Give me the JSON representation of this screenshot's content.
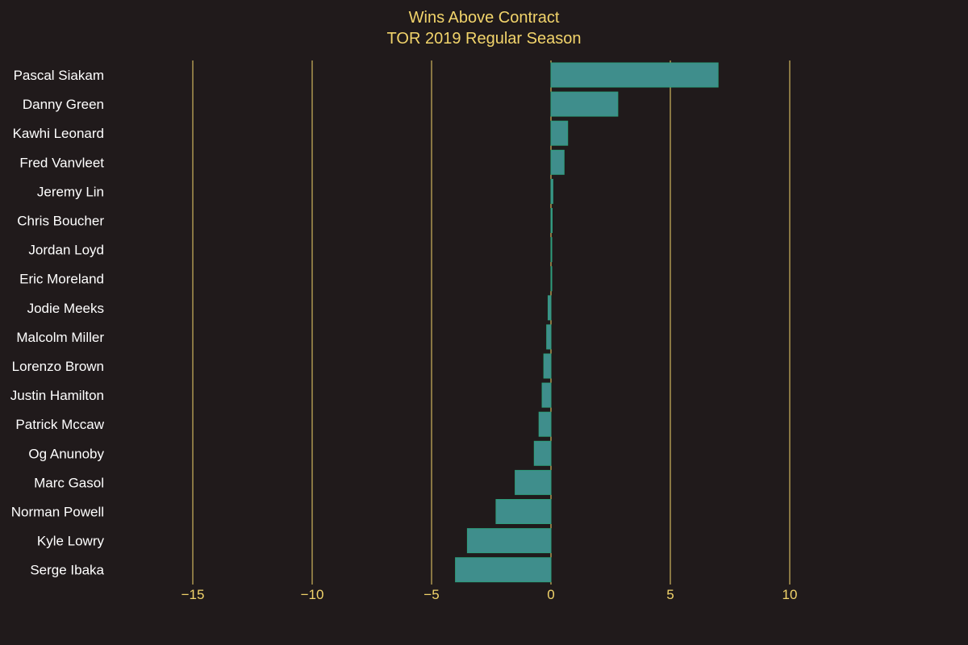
{
  "chart_data": {
    "type": "bar",
    "orientation": "horizontal",
    "title": "Wins Above Contract",
    "subtitle": "TOR 2019 Regular Season",
    "xlabel": "",
    "ylabel": "",
    "xlim": [
      -15,
      13
    ],
    "xticks": [
      -15,
      -10,
      -5,
      0,
      5,
      10
    ],
    "xtick_labels": [
      "−15",
      "−10",
      "−5",
      "0",
      "5",
      "10"
    ],
    "grid": "vertical",
    "legend": "none",
    "categories": [
      "Pascal Siakam",
      "Danny Green",
      "Kawhi Leonard",
      "Fred Vanvleet",
      "Jeremy Lin",
      "Chris Boucher",
      "Jordan Loyd",
      "Eric Moreland",
      "Jodie Meeks",
      "Malcolm Miller",
      "Lorenzo Brown",
      "Justin Hamilton",
      "Patrick Mccaw",
      "Og Anunoby",
      "Marc Gasol",
      "Norman Powell",
      "Kyle Lowry",
      "Serge Ibaka"
    ],
    "values": [
      7.0,
      2.8,
      0.7,
      0.55,
      0.08,
      0.05,
      0.03,
      0.02,
      -0.12,
      -0.18,
      -0.3,
      -0.37,
      -0.5,
      -0.7,
      -1.5,
      -2.3,
      -3.5,
      -4.0
    ]
  },
  "colors": {
    "background": "#201a1b",
    "bar_fill": "#3f8e8c",
    "bar_edge": "#2e9d7c",
    "grid": "#f2d46b",
    "title": "#f2d46b",
    "tick_label": "#f2d46b",
    "category_label": "#ffffff"
  }
}
